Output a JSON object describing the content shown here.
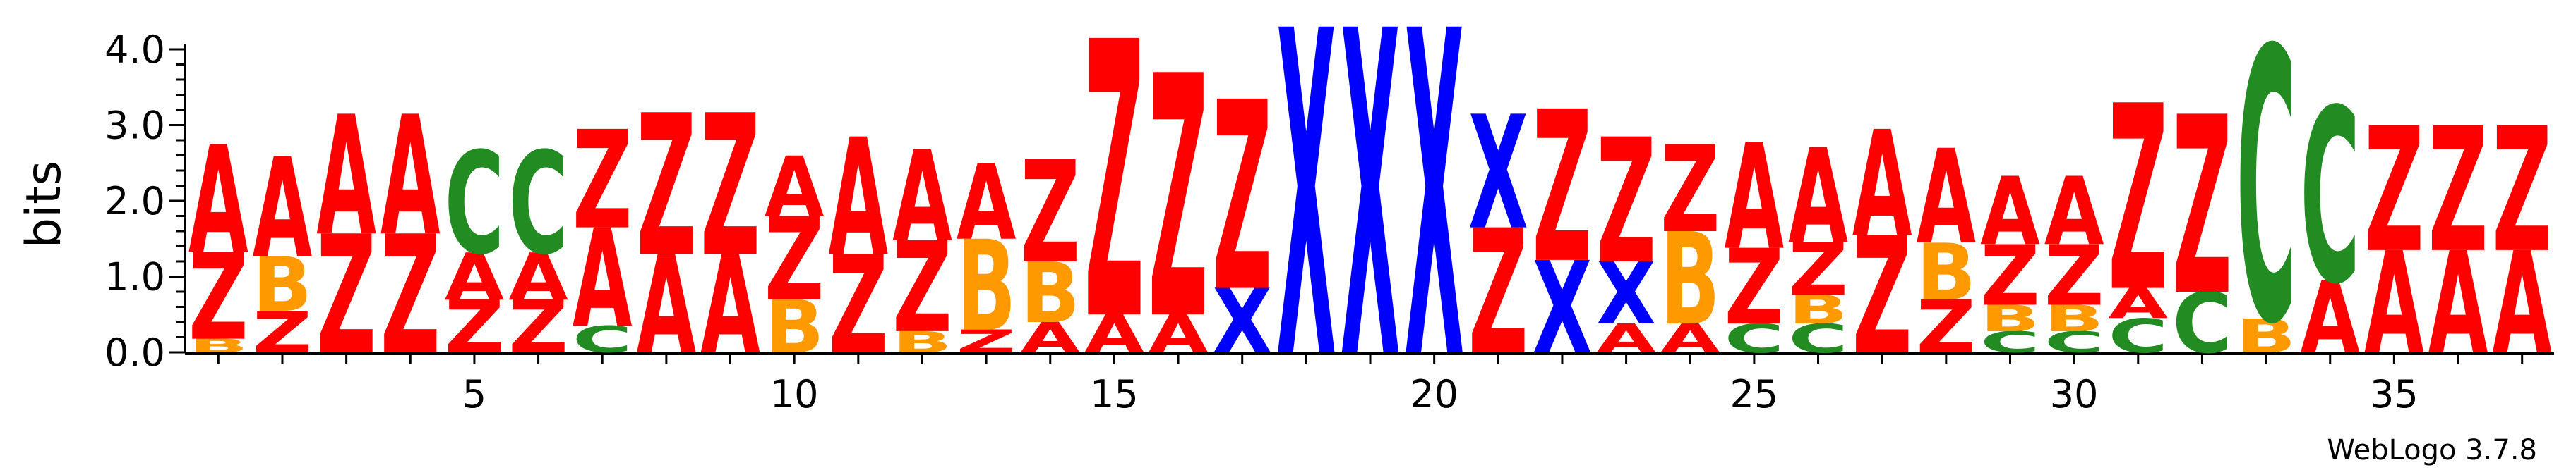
{
  "chart_data": {
    "type": "sequence-logo",
    "ylabel": "bits",
    "ylim": [
      0,
      4.0
    ],
    "yticks": [
      "0.0",
      "1.0",
      "2.0",
      "3.0",
      "4.0"
    ],
    "xticks": [
      5,
      10,
      15,
      20,
      25,
      30,
      35
    ],
    "positions": 37,
    "colors": {
      "A": "#ff0000",
      "Z": "#ff0000",
      "B": "#ff9900",
      "C": "#228b22",
      "X": "#0000ff"
    },
    "footer": "WebLogo 3.7.8",
    "columns": [
      [
        {
          "l": "B",
          "h": 0.18
        },
        {
          "l": "Z",
          "h": 1.15
        },
        {
          "l": "A",
          "h": 1.42
        }
      ],
      [
        {
          "l": "Z",
          "h": 0.55
        },
        {
          "l": "B",
          "h": 0.72
        },
        {
          "l": "A",
          "h": 1.32
        }
      ],
      [
        {
          "l": "Z",
          "h": 1.57
        },
        {
          "l": "A",
          "h": 1.58
        }
      ],
      [
        {
          "l": "Z",
          "h": 1.57
        },
        {
          "l": "A",
          "h": 1.58
        }
      ],
      [
        {
          "l": "Z",
          "h": 0.7
        },
        {
          "l": "A",
          "h": 0.62
        },
        {
          "l": "C",
          "h": 1.35
        }
      ],
      [
        {
          "l": "Z",
          "h": 0.7
        },
        {
          "l": "A",
          "h": 0.62
        },
        {
          "l": "C",
          "h": 1.35
        }
      ],
      [
        {
          "l": "C",
          "h": 0.35
        },
        {
          "l": "A",
          "h": 1.3
        },
        {
          "l": "Z",
          "h": 1.3
        }
      ],
      [
        {
          "l": "A",
          "h": 1.3
        },
        {
          "l": "Z",
          "h": 1.87
        }
      ],
      [
        {
          "l": "A",
          "h": 1.3
        },
        {
          "l": "Z",
          "h": 1.87
        }
      ],
      [
        {
          "l": "B",
          "h": 0.7
        },
        {
          "l": "Z",
          "h": 1.1
        },
        {
          "l": "A",
          "h": 0.8
        }
      ],
      [
        {
          "l": "Z",
          "h": 1.3
        },
        {
          "l": "A",
          "h": 1.55
        }
      ],
      [
        {
          "l": "B",
          "h": 0.28
        },
        {
          "l": "Z",
          "h": 1.2
        },
        {
          "l": "A",
          "h": 1.2
        }
      ],
      [
        {
          "l": "Z",
          "h": 0.3
        },
        {
          "l": "B",
          "h": 1.2
        },
        {
          "l": "A",
          "h": 1.0
        }
      ],
      [
        {
          "l": "A",
          "h": 0.4
        },
        {
          "l": "B",
          "h": 0.8
        },
        {
          "l": "Z",
          "h": 1.35
        }
      ],
      [
        {
          "l": "A",
          "h": 0.5
        },
        {
          "l": "Z",
          "h": 3.65
        }
      ],
      [
        {
          "l": "A",
          "h": 0.5
        },
        {
          "l": "Z",
          "h": 3.2
        }
      ],
      [
        {
          "l": "X",
          "h": 0.85
        },
        {
          "l": "Z",
          "h": 2.5
        }
      ],
      [
        {
          "l": "X",
          "h": 4.3
        }
      ],
      [
        {
          "l": "X",
          "h": 4.3
        }
      ],
      [
        {
          "l": "X",
          "h": 4.3
        }
      ],
      [
        {
          "l": "Z",
          "h": 1.65
        },
        {
          "l": "X",
          "h": 1.5
        }
      ],
      [
        {
          "l": "X",
          "h": 1.22
        },
        {
          "l": "Z",
          "h": 2.0
        }
      ],
      [
        {
          "l": "A",
          "h": 0.38
        },
        {
          "l": "X",
          "h": 0.82
        },
        {
          "l": "Z",
          "h": 1.65
        }
      ],
      [
        {
          "l": "A",
          "h": 0.38
        },
        {
          "l": "B",
          "h": 1.22
        },
        {
          "l": "Z",
          "h": 1.15
        }
      ],
      [
        {
          "l": "C",
          "h": 0.38
        },
        {
          "l": "Z",
          "h": 1.0
        },
        {
          "l": "A",
          "h": 1.4
        }
      ],
      [
        {
          "l": "C",
          "h": 0.38
        },
        {
          "l": "B",
          "h": 0.38
        },
        {
          "l": "Z",
          "h": 0.7
        },
        {
          "l": "A",
          "h": 1.25
        }
      ],
      [
        {
          "l": "Z",
          "h": 1.55
        },
        {
          "l": "A",
          "h": 1.4
        }
      ],
      [
        {
          "l": "Z",
          "h": 0.7
        },
        {
          "l": "B",
          "h": 0.75
        },
        {
          "l": "A",
          "h": 1.25
        }
      ],
      [
        {
          "l": "C",
          "h": 0.28
        },
        {
          "l": "B",
          "h": 0.35
        },
        {
          "l": "Z",
          "h": 0.8
        },
        {
          "l": "A",
          "h": 0.9
        }
      ],
      [
        {
          "l": "C",
          "h": 0.28
        },
        {
          "l": "B",
          "h": 0.35
        },
        {
          "l": "Z",
          "h": 0.8
        },
        {
          "l": "A",
          "h": 0.9
        }
      ],
      [
        {
          "l": "C",
          "h": 0.45
        },
        {
          "l": "A",
          "h": 0.4
        },
        {
          "l": "Z",
          "h": 2.45
        }
      ],
      [
        {
          "l": "C",
          "h": 0.8
        },
        {
          "l": "Z",
          "h": 2.35
        }
      ],
      [
        {
          "l": "B",
          "h": 0.45
        },
        {
          "l": "C",
          "h": 3.6
        }
      ],
      [
        {
          "l": "A",
          "h": 0.95
        },
        {
          "l": "C",
          "h": 2.3
        }
      ],
      [
        {
          "l": "A",
          "h": 1.35
        },
        {
          "l": "Z",
          "h": 1.65
        }
      ],
      [
        {
          "l": "A",
          "h": 1.35
        },
        {
          "l": "Z",
          "h": 1.65
        }
      ],
      [
        {
          "l": "A",
          "h": 1.35
        },
        {
          "l": "Z",
          "h": 1.65
        }
      ]
    ]
  }
}
